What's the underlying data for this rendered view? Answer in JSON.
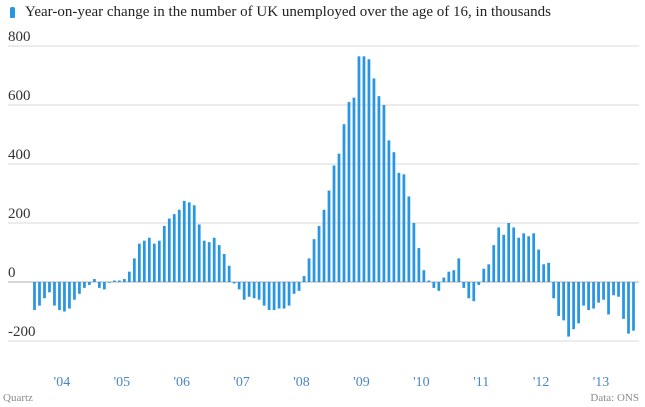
{
  "chart_data": {
    "type": "bar",
    "series": [
      {
        "name": "Year-on-year change in the number of UK unemployed over the age of 16, in thousands",
        "values": [
          -95,
          -80,
          -55,
          -35,
          -80,
          -95,
          -100,
          -90,
          -60,
          -40,
          -20,
          -10,
          10,
          -20,
          -25,
          0,
          5,
          5,
          10,
          35,
          80,
          130,
          140,
          150,
          130,
          140,
          190,
          215,
          230,
          245,
          275,
          270,
          260,
          195,
          140,
          135,
          150,
          125,
          95,
          55,
          -5,
          -25,
          -60,
          -50,
          -55,
          -60,
          -80,
          -95,
          -95,
          -90,
          -90,
          -80,
          -40,
          -30,
          20,
          80,
          145,
          190,
          245,
          310,
          395,
          435,
          535,
          610,
          625,
          765,
          765,
          755,
          690,
          630,
          600,
          480,
          440,
          370,
          365,
          290,
          200,
          115,
          40,
          5,
          -20,
          -30,
          15,
          35,
          40,
          80,
          -20,
          -55,
          -65,
          -10,
          45,
          60,
          125,
          185,
          160,
          200,
          185,
          150,
          165,
          155,
          165,
          110,
          60,
          65,
          -55,
          -115,
          -130,
          -185,
          -160,
          -140,
          -80,
          -95,
          -90,
          -70,
          -60,
          -110,
          -45,
          -50,
          -125,
          -175,
          -165
        ]
      }
    ],
    "y_ticks": [
      "800",
      "600",
      "400",
      "200",
      "0",
      "-200"
    ],
    "ylim": [
      -210,
      810
    ],
    "x_ticks": [
      "'04",
      "'05",
      "'06",
      "'07",
      "'08",
      "'09",
      "'10",
      "'11",
      "'12",
      "'13"
    ],
    "grid": true,
    "legend": "top-left",
    "colors": {
      "bar": "#2996e2",
      "grid": "#d8d8d8",
      "zero_line": "#c8c8c8",
      "x_tick_text": "#4a86c5"
    }
  },
  "footer": {
    "source_left": "Quartz",
    "source_right": "Data: ONS"
  }
}
